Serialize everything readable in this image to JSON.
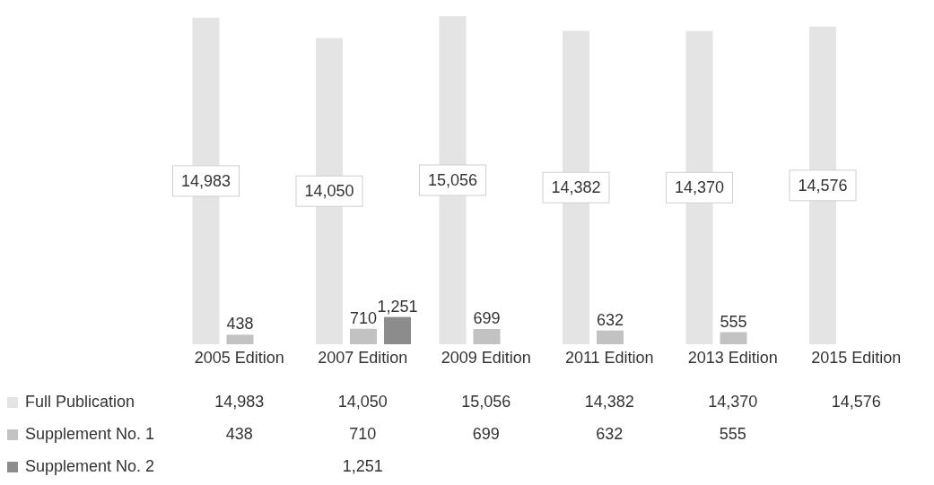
{
  "chart_data": {
    "type": "bar",
    "categories": [
      "2005 Edition",
      "2007 Edition",
      "2009 Edition",
      "2011 Edition",
      "2013 Edition",
      "2015 Edition"
    ],
    "series": [
      {
        "name": "Full Publication",
        "color": "#e4e4e4",
        "values": [
          14983,
          14050,
          15056,
          14382,
          14370,
          14576
        ],
        "value_labels": [
          "14,983",
          "14,050",
          "15,056",
          "14,382",
          "14,370",
          "14,576"
        ]
      },
      {
        "name": "Supplement No. 1",
        "color": "#c2c2c2",
        "values": [
          438,
          710,
          699,
          632,
          555,
          null
        ],
        "value_labels": [
          "438",
          "710",
          "699",
          "632",
          "555",
          null
        ]
      },
      {
        "name": "Supplement No. 2",
        "color": "#8c8c8c",
        "values": [
          null,
          1251,
          null,
          null,
          null,
          null
        ],
        "value_labels": [
          null,
          "1,251",
          null,
          null,
          null,
          null
        ]
      }
    ],
    "legend": "bottom",
    "grid": false
  }
}
